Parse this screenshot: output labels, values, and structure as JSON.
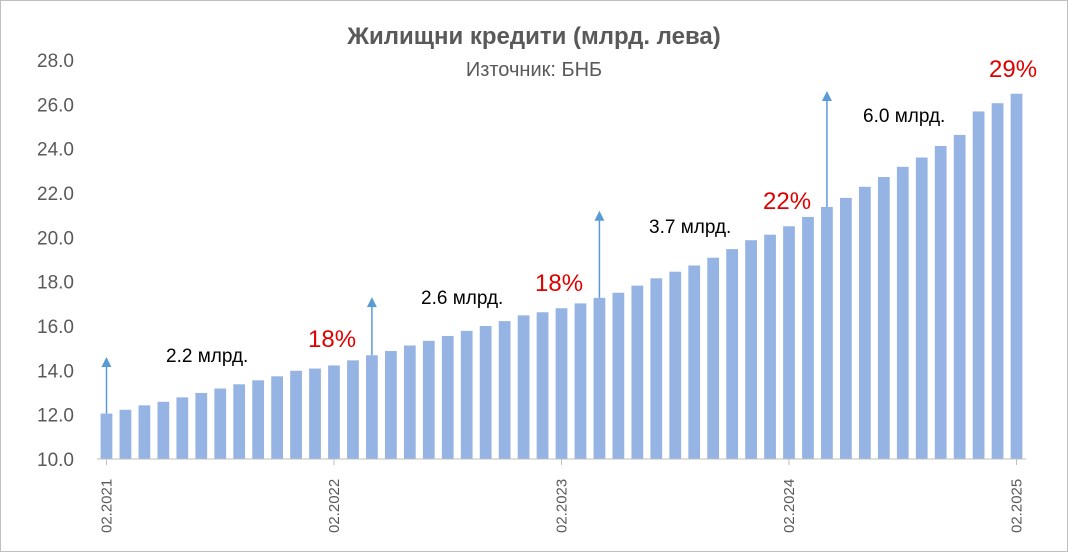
{
  "chart_data": {
    "type": "bar",
    "title": "Жилищни кредити (млрд. лева)",
    "subtitle": "Източник: БНБ",
    "colors": {
      "bar": "#95b3e3",
      "arrow": "#5b9bd5",
      "percent": "#e00000",
      "amount": "#000000",
      "axis": "#bfbfbf",
      "text": "#595959"
    },
    "ylim": [
      10.0,
      28.0
    ],
    "yticks": [
      "10.0",
      "12.0",
      "14.0",
      "16.0",
      "18.0",
      "20.0",
      "22.0",
      "24.0",
      "26.0",
      "28.0"
    ],
    "xtick_labels": [
      "02.2021",
      "02.2022",
      "02.2023",
      "02.2024",
      "02.2025"
    ],
    "xtick_bar_index": [
      0,
      12,
      24,
      36,
      48
    ],
    "values": [
      12.05,
      12.22,
      12.42,
      12.58,
      12.78,
      12.98,
      13.18,
      13.37,
      13.55,
      13.73,
      13.98,
      14.08,
      14.22,
      14.45,
      14.68,
      14.87,
      15.12,
      15.33,
      15.55,
      15.78,
      16.0,
      16.22,
      16.48,
      16.62,
      16.8,
      17.02,
      17.27,
      17.5,
      17.82,
      18.15,
      18.45,
      18.73,
      19.08,
      19.47,
      19.87,
      20.12,
      20.5,
      20.92,
      21.37,
      21.78,
      22.28,
      22.72,
      23.18,
      23.6,
      24.12,
      24.62,
      25.68,
      26.05,
      26.48
    ],
    "annotations": [
      {
        "amount": "2.2 млрд.",
        "percent": "18%"
      },
      {
        "amount": "2.6 млрд.",
        "percent": "18%"
      },
      {
        "amount": "3.7 млрд.",
        "percent": "22%"
      },
      {
        "amount": "6.0 млрд.",
        "percent": "29%"
      }
    ]
  }
}
